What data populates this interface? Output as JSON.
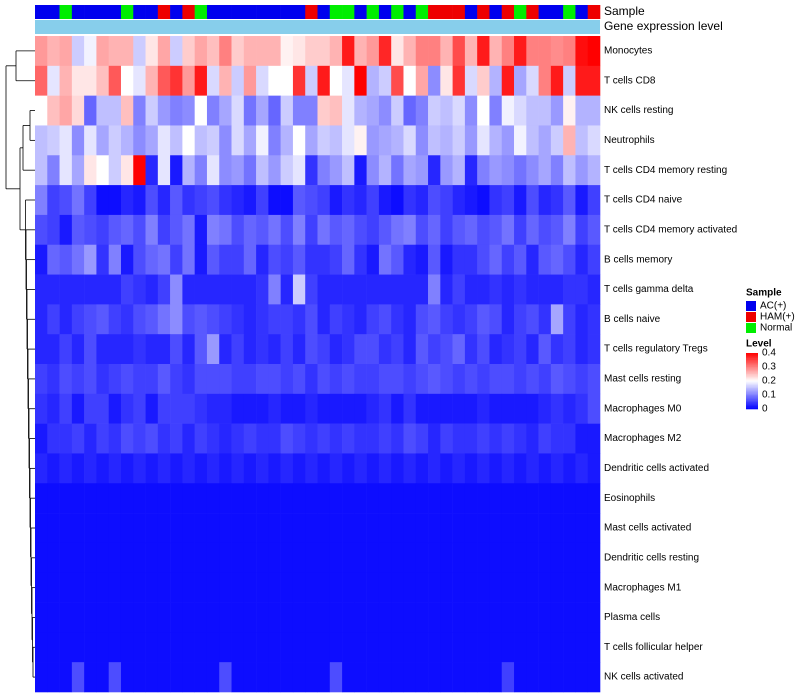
{
  "chart_data": {
    "type": "heatmap",
    "annotation_tracks": [
      {
        "name": "Sample",
        "label": "Sample"
      },
      {
        "name": "Gene expression level",
        "label": "Gene expression level"
      }
    ],
    "sample_groups": [
      "AC",
      "AC",
      "Normal",
      "AC",
      "AC",
      "AC",
      "AC",
      "Normal",
      "AC",
      "AC",
      "HAM",
      "AC",
      "HAM",
      "Normal",
      "AC",
      "AC",
      "AC",
      "AC",
      "AC",
      "AC",
      "AC",
      "AC",
      "HAM",
      "AC",
      "Normal",
      "Normal",
      "AC",
      "Normal",
      "AC",
      "Normal",
      "AC",
      "Normal",
      "HAM",
      "HAM",
      "HAM",
      "AC",
      "HAM",
      "AC",
      "HAM",
      "Normal",
      "HAM",
      "AC",
      "AC",
      "Normal",
      "AC",
      "HAM"
    ],
    "group_colors": {
      "AC": "#0000ee",
      "HAM": "#ee0000",
      "Normal": "#00ee00"
    },
    "gene_expression_color": "#87ceeb",
    "rows": [
      "Monocytes",
      "T cells CD8",
      "NK cells resting",
      "Neutrophils",
      "T cells CD4 memory resting",
      "T cells CD4 naive",
      "T cells CD4 memory activated",
      "B cells memory",
      "T cells gamma delta",
      "B cells naive",
      "T cells regulatory  Tregs",
      "Mast cells resting",
      "Macrophages M0",
      "Macrophages M2",
      "Dendritic cells activated",
      "Eosinophils",
      "Mast cells activated",
      "Dendritic cells resting",
      "Macrophages M1",
      "Plasma cells",
      "T cells follicular helper",
      "NK cells activated"
    ],
    "row_approx_values": [
      [
        0.28,
        0.26,
        0.27,
        0.16,
        0.19,
        0.27,
        0.26,
        0.26,
        0.16,
        0.22,
        0.27,
        0.16,
        0.24,
        0.27,
        0.25,
        0.3,
        0.24,
        0.26,
        0.26,
        0.26,
        0.21,
        0.22,
        0.24,
        0.24,
        0.26,
        0.38,
        0.26,
        0.28,
        0.37,
        0.22,
        0.26,
        0.3,
        0.3,
        0.26,
        0.34,
        0.26,
        0.38,
        0.26,
        0.3,
        0.38,
        0.3,
        0.3,
        0.29,
        0.3,
        0.39,
        0.4
      ],
      [
        0.32,
        0.18,
        0.26,
        0.22,
        0.22,
        0.25,
        0.33,
        0.2,
        0.18,
        0.26,
        0.33,
        0.36,
        0.28,
        0.38,
        0.17,
        0.26,
        0.16,
        0.28,
        0.17,
        0.2,
        0.2,
        0.36,
        0.16,
        0.38,
        0.2,
        0.18,
        0.4,
        0.14,
        0.16,
        0.34,
        0.2,
        0.27,
        0.11,
        0.22,
        0.36,
        0.17,
        0.24,
        0.14,
        0.38,
        0.13,
        0.17,
        0.3,
        0.38,
        0.16,
        0.38,
        0.38
      ],
      [
        0.2,
        0.25,
        0.27,
        0.23,
        0.08,
        0.15,
        0.15,
        0.25,
        0.1,
        0.16,
        0.12,
        0.1,
        0.11,
        0.2,
        0.1,
        0.13,
        0.17,
        0.09,
        0.13,
        0.08,
        0.16,
        0.1,
        0.1,
        0.24,
        0.25,
        0.18,
        0.14,
        0.13,
        0.11,
        0.16,
        0.08,
        0.1,
        0.16,
        0.15,
        0.17,
        0.11,
        0.2,
        0.1,
        0.19,
        0.17,
        0.15,
        0.15,
        0.12,
        0.21,
        0.14,
        0.14
      ],
      [
        0.15,
        0.16,
        0.18,
        0.11,
        0.18,
        0.13,
        0.16,
        0.14,
        0.11,
        0.13,
        0.18,
        0.15,
        0.2,
        0.15,
        0.16,
        0.11,
        0.17,
        0.13,
        0.19,
        0.1,
        0.14,
        0.2,
        0.13,
        0.16,
        0.15,
        0.18,
        0.21,
        0.12,
        0.13,
        0.14,
        0.17,
        0.11,
        0.15,
        0.14,
        0.16,
        0.12,
        0.18,
        0.14,
        0.12,
        0.19,
        0.15,
        0.13,
        0.16,
        0.26,
        0.15,
        0.17
      ],
      [
        0.15,
        0.1,
        0.18,
        0.13,
        0.22,
        0.2,
        0.16,
        0.22,
        0.4,
        0.03,
        0.18,
        0.02,
        0.14,
        0.1,
        0.18,
        0.11,
        0.12,
        0.09,
        0.15,
        0.12,
        0.16,
        0.18,
        0.04,
        0.1,
        0.12,
        0.15,
        0.02,
        0.11,
        0.14,
        0.09,
        0.13,
        0.12,
        0.03,
        0.12,
        0.14,
        0.03,
        0.1,
        0.12,
        0.11,
        0.09,
        0.11,
        0.13,
        0.1,
        0.15,
        0.12,
        0.14
      ],
      [
        0.1,
        0.05,
        0.06,
        0.09,
        0.05,
        0.01,
        0.01,
        0.03,
        0.02,
        0.06,
        0.03,
        0.07,
        0.04,
        0.05,
        0.06,
        0.04,
        0.03,
        0.02,
        0.05,
        0.01,
        0.01,
        0.07,
        0.06,
        0.05,
        0.02,
        0.04,
        0.03,
        0.05,
        0.02,
        0.01,
        0.04,
        0.03,
        0.06,
        0.05,
        0.03,
        0.02,
        0.01,
        0.04,
        0.05,
        0.02,
        0.06,
        0.03,
        0.04,
        0.07,
        0.02,
        0.05
      ],
      [
        0.06,
        0.05,
        0.02,
        0.07,
        0.06,
        0.05,
        0.07,
        0.08,
        0.06,
        0.1,
        0.05,
        0.07,
        0.09,
        0.02,
        0.1,
        0.09,
        0.06,
        0.08,
        0.07,
        0.09,
        0.06,
        0.1,
        0.05,
        0.09,
        0.07,
        0.08,
        0.06,
        0.05,
        0.07,
        0.09,
        0.1,
        0.06,
        0.08,
        0.05,
        0.07,
        0.08,
        0.06,
        0.07,
        0.09,
        0.05,
        0.08,
        0.06,
        0.07,
        0.1,
        0.05,
        0.07
      ],
      [
        0.02,
        0.08,
        0.07,
        0.09,
        0.12,
        0.04,
        0.1,
        0.02,
        0.06,
        0.08,
        0.09,
        0.05,
        0.09,
        0.02,
        0.07,
        0.05,
        0.05,
        0.08,
        0.03,
        0.06,
        0.05,
        0.07,
        0.04,
        0.04,
        0.05,
        0.08,
        0.04,
        0.02,
        0.09,
        0.07,
        0.03,
        0.02,
        0.07,
        0.02,
        0.04,
        0.04,
        0.06,
        0.08,
        0.05,
        0.07,
        0.03,
        0.07,
        0.08,
        0.06,
        0.03,
        0.05
      ],
      [
        0.03,
        0.03,
        0.03,
        0.03,
        0.03,
        0.03,
        0.03,
        0.05,
        0.04,
        0.03,
        0.05,
        0.11,
        0.03,
        0.03,
        0.03,
        0.03,
        0.03,
        0.03,
        0.04,
        0.1,
        0.03,
        0.16,
        0.05,
        0.03,
        0.03,
        0.03,
        0.03,
        0.03,
        0.03,
        0.03,
        0.03,
        0.03,
        0.1,
        0.03,
        0.05,
        0.03,
        0.03,
        0.04,
        0.03,
        0.04,
        0.03,
        0.03,
        0.03,
        0.04,
        0.04,
        0.03
      ],
      [
        0.03,
        0.05,
        0.03,
        0.05,
        0.06,
        0.07,
        0.05,
        0.04,
        0.06,
        0.07,
        0.09,
        0.11,
        0.06,
        0.07,
        0.06,
        0.05,
        0.04,
        0.03,
        0.04,
        0.05,
        0.05,
        0.04,
        0.06,
        0.03,
        0.05,
        0.04,
        0.03,
        0.05,
        0.06,
        0.04,
        0.03,
        0.06,
        0.07,
        0.05,
        0.04,
        0.05,
        0.07,
        0.06,
        0.03,
        0.05,
        0.06,
        0.04,
        0.13,
        0.05,
        0.03,
        0.04
      ],
      [
        0.03,
        0.03,
        0.05,
        0.03,
        0.06,
        0.03,
        0.03,
        0.03,
        0.04,
        0.03,
        0.03,
        0.06,
        0.03,
        0.07,
        0.12,
        0.03,
        0.05,
        0.03,
        0.04,
        0.03,
        0.05,
        0.03,
        0.06,
        0.05,
        0.03,
        0.04,
        0.06,
        0.06,
        0.04,
        0.05,
        0.03,
        0.07,
        0.05,
        0.06,
        0.08,
        0.04,
        0.06,
        0.03,
        0.04,
        0.05,
        0.03,
        0.07,
        0.04,
        0.05,
        0.03,
        0.04
      ],
      [
        0.05,
        0.04,
        0.06,
        0.05,
        0.06,
        0.04,
        0.05,
        0.06,
        0.05,
        0.05,
        0.07,
        0.05,
        0.04,
        0.06,
        0.06,
        0.06,
        0.05,
        0.05,
        0.06,
        0.06,
        0.05,
        0.06,
        0.04,
        0.06,
        0.05,
        0.06,
        0.05,
        0.05,
        0.06,
        0.06,
        0.05,
        0.06,
        0.07,
        0.06,
        0.05,
        0.06,
        0.05,
        0.06,
        0.06,
        0.05,
        0.06,
        0.05,
        0.07,
        0.06,
        0.05,
        0.06
      ],
      [
        0.04,
        0.03,
        0.05,
        0.02,
        0.05,
        0.05,
        0.02,
        0.04,
        0.05,
        0.02,
        0.05,
        0.05,
        0.05,
        0.04,
        0.03,
        0.03,
        0.02,
        0.02,
        0.02,
        0.03,
        0.02,
        0.02,
        0.03,
        0.02,
        0.02,
        0.02,
        0.02,
        0.03,
        0.04,
        0.02,
        0.04,
        0.02,
        0.02,
        0.02,
        0.02,
        0.02,
        0.03,
        0.02,
        0.02,
        0.02,
        0.02,
        0.03,
        0.04,
        0.03,
        0.04,
        0.06
      ],
      [
        0.02,
        0.04,
        0.04,
        0.05,
        0.03,
        0.05,
        0.04,
        0.06,
        0.05,
        0.06,
        0.04,
        0.05,
        0.03,
        0.05,
        0.04,
        0.03,
        0.04,
        0.05,
        0.04,
        0.04,
        0.06,
        0.05,
        0.04,
        0.05,
        0.04,
        0.05,
        0.04,
        0.04,
        0.05,
        0.04,
        0.06,
        0.05,
        0.03,
        0.05,
        0.04,
        0.04,
        0.05,
        0.04,
        0.05,
        0.04,
        0.03,
        0.05,
        0.04,
        0.04,
        0.02,
        0.02
      ],
      [
        0.03,
        0.02,
        0.03,
        0.02,
        0.03,
        0.02,
        0.03,
        0.02,
        0.03,
        0.02,
        0.03,
        0.02,
        0.03,
        0.02,
        0.03,
        0.02,
        0.03,
        0.02,
        0.03,
        0.02,
        0.03,
        0.02,
        0.03,
        0.02,
        0.03,
        0.02,
        0.03,
        0.02,
        0.03,
        0.02,
        0.03,
        0.02,
        0.03,
        0.02,
        0.03,
        0.02,
        0.03,
        0.02,
        0.03,
        0.02,
        0.03,
        0.02,
        0.03,
        0.02,
        0.03,
        0.02
      ],
      [
        0.01,
        0.01,
        0.01,
        0.01,
        0.01,
        0.01,
        0.01,
        0.01,
        0.01,
        0.01,
        0.01,
        0.01,
        0.01,
        0.01,
        0.01,
        0.01,
        0.01,
        0.01,
        0.01,
        0.01,
        0.01,
        0.01,
        0.01,
        0.01,
        0.01,
        0.01,
        0.01,
        0.01,
        0.01,
        0.01,
        0.01,
        0.01,
        0.01,
        0.01,
        0.01,
        0.01,
        0.01,
        0.01,
        0.01,
        0.01,
        0.01,
        0.01,
        0.01,
        0.01,
        0.01,
        0.01
      ],
      [
        0.01,
        0.01,
        0.01,
        0.01,
        0.01,
        0.01,
        0.01,
        0.01,
        0.01,
        0.01,
        0.01,
        0.01,
        0.01,
        0.01,
        0.01,
        0.01,
        0.01,
        0.01,
        0.01,
        0.01,
        0.01,
        0.01,
        0.01,
        0.01,
        0.01,
        0.01,
        0.01,
        0.01,
        0.01,
        0.01,
        0.01,
        0.01,
        0.01,
        0.01,
        0.01,
        0.01,
        0.01,
        0.01,
        0.01,
        0.01,
        0.01,
        0.01,
        0.01,
        0.01,
        0.01,
        0.01
      ],
      [
        0.01,
        0.01,
        0.01,
        0.01,
        0.01,
        0.01,
        0.01,
        0.01,
        0.01,
        0.01,
        0.01,
        0.01,
        0.01,
        0.01,
        0.01,
        0.01,
        0.01,
        0.01,
        0.01,
        0.01,
        0.01,
        0.01,
        0.01,
        0.01,
        0.01,
        0.01,
        0.01,
        0.01,
        0.01,
        0.01,
        0.01,
        0.01,
        0.01,
        0.01,
        0.01,
        0.01,
        0.01,
        0.01,
        0.01,
        0.01,
        0.01,
        0.01,
        0.01,
        0.01,
        0.01,
        0.01
      ],
      [
        0.01,
        0.01,
        0.01,
        0.01,
        0.01,
        0.01,
        0.01,
        0.01,
        0.01,
        0.01,
        0.01,
        0.01,
        0.01,
        0.01,
        0.01,
        0.01,
        0.01,
        0.01,
        0.01,
        0.01,
        0.01,
        0.01,
        0.01,
        0.01,
        0.01,
        0.01,
        0.01,
        0.01,
        0.01,
        0.01,
        0.01,
        0.01,
        0.01,
        0.01,
        0.01,
        0.01,
        0.01,
        0.01,
        0.01,
        0.01,
        0.01,
        0.01,
        0.01,
        0.01,
        0.01,
        0.01
      ],
      [
        0.01,
        0.01,
        0.01,
        0.01,
        0.01,
        0.01,
        0.01,
        0.01,
        0.01,
        0.01,
        0.01,
        0.01,
        0.01,
        0.01,
        0.01,
        0.01,
        0.01,
        0.01,
        0.01,
        0.01,
        0.01,
        0.01,
        0.01,
        0.01,
        0.01,
        0.01,
        0.01,
        0.01,
        0.01,
        0.01,
        0.01,
        0.01,
        0.01,
        0.01,
        0.01,
        0.01,
        0.01,
        0.01,
        0.01,
        0.01,
        0.01,
        0.01,
        0.01,
        0.01,
        0.01,
        0.01
      ],
      [
        0.01,
        0.01,
        0.01,
        0.01,
        0.01,
        0.01,
        0.01,
        0.01,
        0.01,
        0.01,
        0.01,
        0.01,
        0.01,
        0.01,
        0.01,
        0.01,
        0.01,
        0.01,
        0.01,
        0.01,
        0.01,
        0.01,
        0.01,
        0.01,
        0.01,
        0.01,
        0.01,
        0.01,
        0.01,
        0.01,
        0.01,
        0.01,
        0.01,
        0.01,
        0.01,
        0.01,
        0.01,
        0.01,
        0.01,
        0.01,
        0.01,
        0.01,
        0.01,
        0.01,
        0.01,
        0.01
      ],
      [
        0.01,
        0.01,
        0.01,
        0.06,
        0.01,
        0.01,
        0.06,
        0.01,
        0.01,
        0.01,
        0.01,
        0.01,
        0.01,
        0.01,
        0.01,
        0.06,
        0.01,
        0.01,
        0.01,
        0.01,
        0.01,
        0.01,
        0.01,
        0.01,
        0.06,
        0.01,
        0.01,
        0.01,
        0.01,
        0.01,
        0.01,
        0.01,
        0.01,
        0.01,
        0.01,
        0.01,
        0.01,
        0.01,
        0.05,
        0.01,
        0.01,
        0.01,
        0.01,
        0.01,
        0.01,
        0.01
      ]
    ],
    "legend": {
      "sample_title": "Sample",
      "sample_entries": [
        {
          "key": "AC",
          "label": "AC(+)",
          "color": "#0000ee"
        },
        {
          "key": "HAM",
          "label": "HAM(+)",
          "color": "#ee0000"
        },
        {
          "key": "Normal",
          "label": "Normal",
          "color": "#00ee00"
        }
      ],
      "level_title": "Level",
      "level_ticks": [
        "0.4",
        "0.3",
        "0.2",
        "0.1",
        "0"
      ],
      "level_range": [
        0,
        0.4
      ],
      "color_low": "#0000ff",
      "color_mid": "#ffffff",
      "color_high": "#ff0000"
    }
  }
}
